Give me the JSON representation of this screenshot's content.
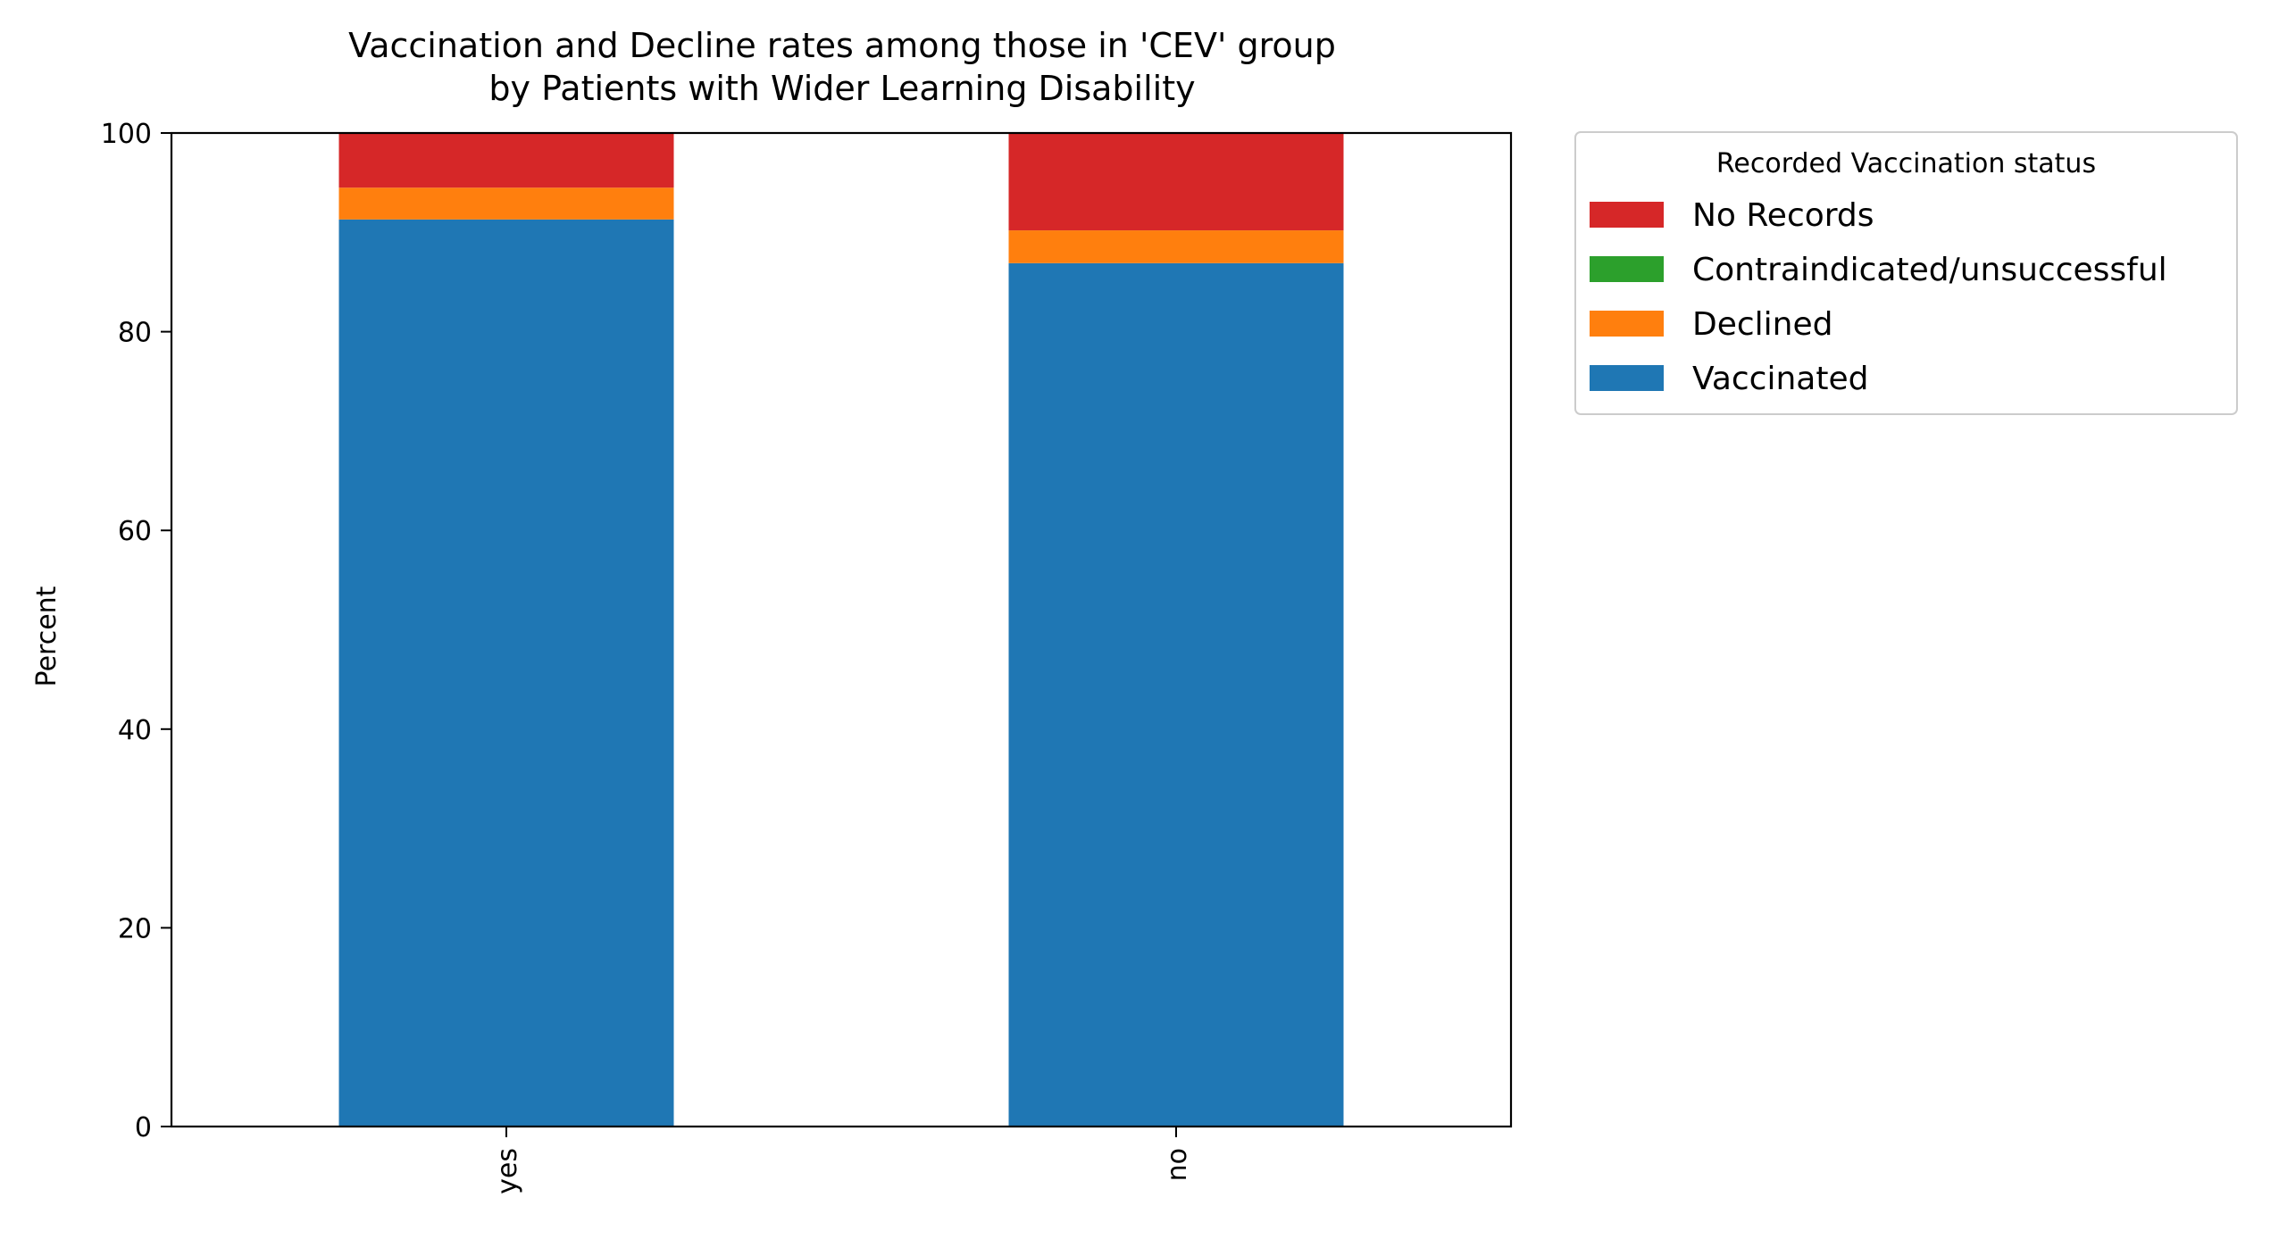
{
  "chart_data": {
    "type": "bar",
    "stacked": true,
    "title": "Vaccination and Decline rates among those in 'CEV' group\nby Patients with Wider Learning Disability",
    "xlabel": "",
    "ylabel": "Percent",
    "ylim": [
      0,
      100
    ],
    "yticks": [
      0,
      20,
      40,
      60,
      80,
      100
    ],
    "grid": false,
    "categories": [
      "yes",
      "no"
    ],
    "series": [
      {
        "name": "Vaccinated",
        "color": "#1f77b4",
        "values": [
          91.3,
          86.9
        ]
      },
      {
        "name": "Declined",
        "color": "#ff7f0e",
        "values": [
          3.2,
          3.3
        ]
      },
      {
        "name": "Contraindicated/unsuccessful",
        "color": "#2ca02c",
        "values": [
          0.0,
          0.0
        ]
      },
      {
        "name": "No Records",
        "color": "#d62728",
        "values": [
          5.5,
          9.8
        ]
      }
    ],
    "legend": {
      "title": "Recorded Vaccination status",
      "placement": "outside upper right",
      "order": [
        "No Records",
        "Contraindicated/unsuccessful",
        "Declined",
        "Vaccinated"
      ]
    }
  }
}
